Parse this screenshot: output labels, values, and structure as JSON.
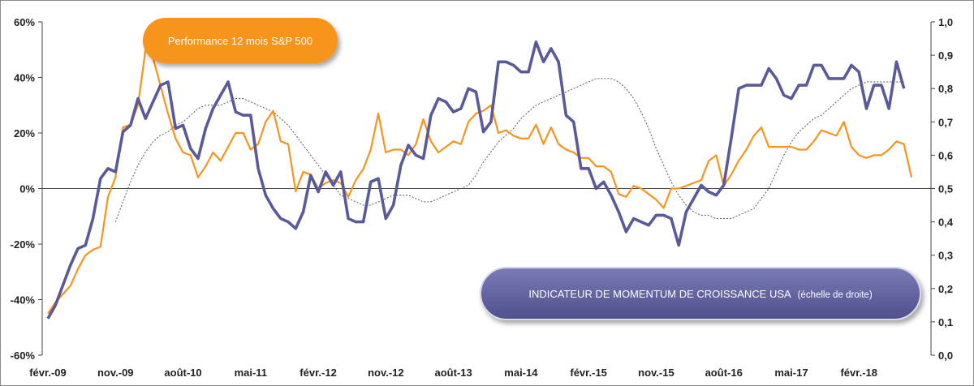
{
  "chart_data": {
    "type": "line",
    "title": "",
    "xlabel": "",
    "ylabel": "",
    "x_tick_labels": [
      "févr.-09",
      "nov.-09",
      "août-10",
      "mai-11",
      "févr.-12",
      "nov.-12",
      "août-13",
      "mai-14",
      "févr.-15",
      "nov.-15",
      "août-16",
      "mai-17",
      "févr.-18"
    ],
    "y_left_tick_labels": [
      "60%",
      "40%",
      "20%",
      "0%",
      "-20%",
      "-40%",
      "-60%"
    ],
    "y_right_tick_labels": [
      "1,0",
      "0,9",
      "0,8",
      "0,7",
      "0,6",
      "0,5",
      "0,4",
      "0,3",
      "0,2",
      "0,1",
      "0,0"
    ],
    "ylim_left": [
      -60,
      60
    ],
    "ylim_right": [
      0,
      1
    ],
    "grid": false,
    "x_start": "2009-02",
    "x_step": "1 month",
    "series": [
      {
        "name": "Performance 12 mois S&P 500",
        "axis": "left",
        "color": "#f7941d",
        "values": [
          -45,
          -41,
          -38,
          -35,
          -29,
          -24,
          -22,
          -21,
          -3,
          4,
          22,
          23,
          30,
          50,
          47,
          37,
          27,
          18,
          13,
          12,
          4,
          8,
          13,
          10,
          15,
          20,
          20,
          14,
          16,
          24,
          28,
          17,
          16,
          -1,
          6,
          5,
          0,
          2,
          3,
          2,
          -3,
          3,
          7,
          14,
          27,
          13,
          14,
          14,
          12,
          16,
          25,
          17,
          13,
          15,
          17,
          16,
          24,
          27,
          28,
          30,
          20,
          21,
          19,
          18,
          18,
          23,
          16,
          22,
          16,
          14,
          13,
          11,
          11,
          8,
          8,
          6,
          -2,
          -3,
          1,
          0,
          -2,
          -4,
          -7,
          0,
          0,
          1,
          2,
          3,
          10,
          12,
          1,
          5,
          10,
          14,
          19,
          22,
          15,
          15,
          15,
          15,
          14,
          14,
          17,
          21,
          20,
          19,
          24,
          15,
          12,
          11,
          12,
          12,
          14,
          17,
          16,
          4
        ]
      },
      {
        "name": "INDICATEUR DE MOMENTUM DE CROISSANCE USA (échelle de droite)",
        "axis": "right",
        "color": "#5a5a9a",
        "values": [
          0.11,
          0.15,
          0.21,
          0.27,
          0.32,
          0.33,
          0.41,
          0.53,
          0.56,
          0.55,
          0.67,
          0.69,
          0.77,
          0.71,
          0.76,
          0.81,
          0.82,
          0.68,
          0.69,
          0.62,
          0.59,
          0.68,
          0.74,
          0.78,
          0.82,
          0.73,
          0.72,
          0.72,
          0.56,
          0.48,
          0.44,
          0.41,
          0.4,
          0.38,
          0.43,
          0.54,
          0.49,
          0.55,
          0.51,
          0.55,
          0.41,
          0.4,
          0.4,
          0.52,
          0.53,
          0.41,
          0.45,
          0.57,
          0.63,
          0.6,
          0.59,
          0.72,
          0.77,
          0.76,
          0.73,
          0.74,
          0.8,
          0.79,
          0.67,
          0.7,
          0.88,
          0.88,
          0.87,
          0.85,
          0.85,
          0.94,
          0.88,
          0.92,
          0.88,
          0.72,
          0.7,
          0.56,
          0.56,
          0.5,
          0.52,
          0.48,
          0.43,
          0.37,
          0.41,
          0.4,
          0.39,
          0.42,
          0.42,
          0.41,
          0.33,
          0.43,
          0.47,
          0.51,
          0.49,
          0.48,
          0.51,
          0.65,
          0.8,
          0.81,
          0.81,
          0.81,
          0.86,
          0.83,
          0.78,
          0.77,
          0.81,
          0.81,
          0.87,
          0.87,
          0.83,
          0.83,
          0.83,
          0.87,
          0.85,
          0.74,
          0.81,
          0.81,
          0.74,
          0.88,
          0.8
        ]
      },
      {
        "name": "",
        "axis": "right",
        "style": "dotted",
        "color": "#555555",
        "x_offset": 9,
        "values": [
          0.4,
          0.46,
          0.52,
          0.57,
          0.61,
          0.64,
          0.66,
          0.67,
          0.69,
          0.7,
          0.72,
          0.74,
          0.75,
          0.75,
          0.75,
          0.76,
          0.77,
          0.77,
          0.76,
          0.75,
          0.74,
          0.73,
          0.71,
          0.69,
          0.66,
          0.63,
          0.6,
          0.57,
          0.54,
          0.51,
          0.48,
          0.47,
          0.46,
          0.45,
          0.45,
          0.46,
          0.47,
          0.48,
          0.48,
          0.48,
          0.47,
          0.46,
          0.46,
          0.47,
          0.48,
          0.49,
          0.5,
          0.51,
          0.54,
          0.58,
          0.61,
          0.64,
          0.66,
          0.68,
          0.71,
          0.73,
          0.75,
          0.76,
          0.77,
          0.78,
          0.79,
          0.8,
          0.81,
          0.82,
          0.83,
          0.83,
          0.83,
          0.82,
          0.8,
          0.77,
          0.73,
          0.68,
          0.62,
          0.57,
          0.52,
          0.48,
          0.45,
          0.43,
          0.42,
          0.42,
          0.41,
          0.41,
          0.41,
          0.42,
          0.43,
          0.44,
          0.47,
          0.5,
          0.55,
          0.6,
          0.64,
          0.67,
          0.69,
          0.71,
          0.72,
          0.74,
          0.76,
          0.78,
          0.8,
          0.81,
          0.82,
          0.82,
          0.82,
          0.82,
          0.82,
          0.82
        ]
      }
    ]
  },
  "labels": {
    "sp500_pill": "Performance 12 mois S&P 500",
    "momentum_pill": "INDICATEUR DE MOMENTUM DE CROISSANCE USA",
    "momentum_pill_suffix": "(échelle de droite)"
  },
  "colors": {
    "sp500": "#f7941d",
    "momentum": "#5a5a9a",
    "pill_orange": "#f7941d",
    "pill_purple": "#62629e"
  }
}
